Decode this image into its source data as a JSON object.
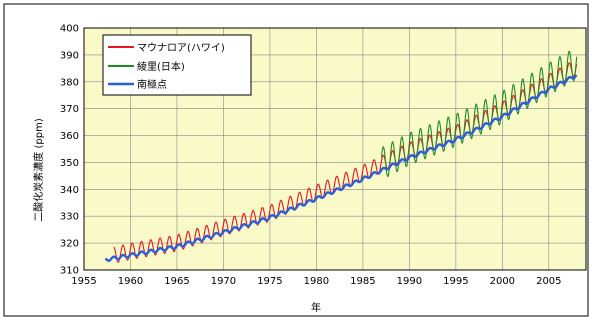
{
  "chart_data": {
    "type": "line",
    "xlabel": "年",
    "ylabel": "二酸化炭素濃度 (ppm)",
    "xlim": [
      1955,
      2009
    ],
    "ylim": [
      310,
      400
    ],
    "xticks": [
      1955,
      1960,
      1965,
      1970,
      1975,
      1980,
      1985,
      1990,
      1995,
      2000,
      2005
    ],
    "yticks": [
      310,
      320,
      330,
      340,
      350,
      360,
      370,
      380,
      390,
      400
    ],
    "grid": true,
    "legend": "top-left",
    "background": "#fafac8",
    "series": [
      {
        "name": "マウナロア(ハワイ)",
        "color": "#e8141e",
        "amplitude": 3.0,
        "x": [
          1958.2,
          1960,
          1965,
          1970,
          1975,
          1980,
          1985,
          1990,
          1995,
          2000,
          2005,
          2008
        ],
        "y": [
          315.5,
          316.9,
          320.0,
          325.7,
          331.1,
          338.7,
          346.0,
          354.4,
          360.8,
          369.5,
          379.8,
          385.6
        ]
      },
      {
        "name": "綾里(日本)",
        "color": "#1e8c1e",
        "amplitude": 6.0,
        "x": [
          1987.0,
          1990,
          1995,
          2000,
          2005,
          2008
        ],
        "y": [
          349.5,
          355.0,
          362.0,
          370.5,
          381.0,
          387.0
        ]
      },
      {
        "name": "南極点",
        "color": "#2a5fdc",
        "amplitude": 0.6,
        "x": [
          1957.3,
          1960,
          1965,
          1970,
          1975,
          1980,
          1985,
          1990,
          1995,
          2000,
          2005,
          2008
        ],
        "y": [
          313.8,
          315.5,
          318.7,
          324.0,
          329.5,
          336.5,
          343.8,
          351.8,
          358.5,
          367.0,
          377.2,
          382.5
        ]
      }
    ]
  }
}
